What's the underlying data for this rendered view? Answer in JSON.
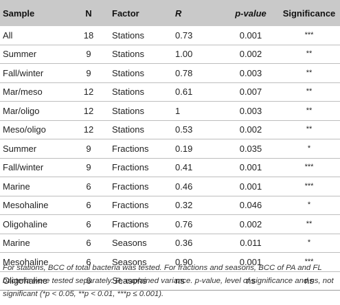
{
  "table": {
    "headers": {
      "sample": "Sample",
      "n": "N",
      "factor": "Factor",
      "r": "R",
      "p_value": "p-value",
      "significance": "Significance"
    },
    "rows": [
      {
        "sample": "All",
        "n": "18",
        "factor": "Stations",
        "r": "0.73",
        "p": "0.001",
        "sig": "***"
      },
      {
        "sample": "Summer",
        "n": "9",
        "factor": "Stations",
        "r": "1.00",
        "p": "0.002",
        "sig": "**"
      },
      {
        "sample": "Fall/winter",
        "n": "9",
        "factor": "Stations",
        "r": "0.78",
        "p": "0.003",
        "sig": "**"
      },
      {
        "sample": "Mar/meso",
        "n": "12",
        "factor": "Stations",
        "r": "0.61",
        "p": "0.007",
        "sig": "**"
      },
      {
        "sample": "Mar/oligo",
        "n": "12",
        "factor": "Stations",
        "r": "1",
        "p": "0.003",
        "sig": "**"
      },
      {
        "sample": "Meso/oligo",
        "n": "12",
        "factor": "Stations",
        "r": "0.53",
        "p": "0.002",
        "sig": "**"
      },
      {
        "sample": "Summer",
        "n": "9",
        "factor": "Fractions",
        "r": "0.19",
        "p": "0.035",
        "sig": "*"
      },
      {
        "sample": "Fall/winter",
        "n": "9",
        "factor": "Fractions",
        "r": "0.41",
        "p": "0.001",
        "sig": "***"
      },
      {
        "sample": "Marine",
        "n": "6",
        "factor": "Fractions",
        "r": "0.46",
        "p": "0.001",
        "sig": "***"
      },
      {
        "sample": "Mesohaline",
        "n": "6",
        "factor": "Fractions",
        "r": "0.32",
        "p": "0.046",
        "sig": "*"
      },
      {
        "sample": "Oligohaline",
        "n": "6",
        "factor": "Fractions",
        "r": "0.76",
        "p": "0.002",
        "sig": "**"
      },
      {
        "sample": "Marine",
        "n": "6",
        "factor": "Seasons",
        "r": "0.36",
        "p": "0.011",
        "sig": "*"
      },
      {
        "sample": "Mesohaline",
        "n": "6",
        "factor": "Seasons",
        "r": "0.90",
        "p": "0.001",
        "sig": "***"
      },
      {
        "sample": "Oligohaline",
        "n": "6",
        "factor": "Seasons",
        "r": "ns",
        "p": "ns",
        "sig": "ns"
      }
    ]
  },
  "caption": "For stations, BCC of total bacteria was tested. For fractions and seasons, BCC of PA and FL bacteria were tested separately. R, explained variance. p-value, level of significance and ns, not significant (*p < 0.05, **p < 0.01, ***p ≤ 0.001).",
  "colors": {
    "header_bg": "#c9c9c9",
    "row_divider": "#bdbdbd",
    "text": "#222222"
  }
}
